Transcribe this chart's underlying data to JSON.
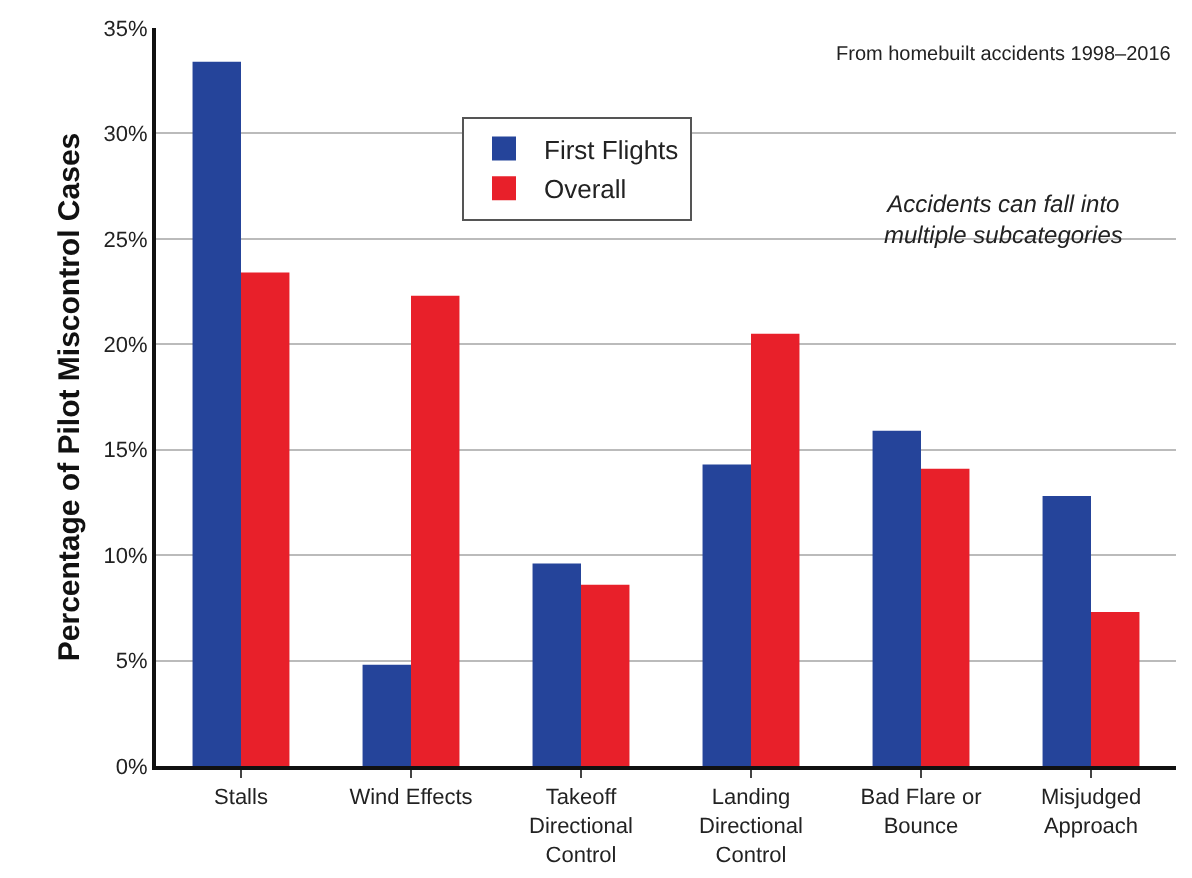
{
  "chart_data": {
    "type": "bar",
    "ylabel": "Percentage of Pilot Miscontrol Cases",
    "categories": [
      "Stalls",
      "Wind Effects",
      "Takeoff\nDirectional\nControl",
      "Landing\nDirectional\nControl",
      "Bad Flare or\nBounce",
      "Misjudged\nApproach"
    ],
    "series": [
      {
        "name": "First Flights",
        "color": "#25449a",
        "values": [
          33.4,
          4.8,
          9.6,
          14.3,
          15.9,
          12.8
        ]
      },
      {
        "name": "Overall",
        "color": "#e8202a",
        "values": [
          23.4,
          22.3,
          8.6,
          20.5,
          14.1,
          7.3
        ]
      }
    ],
    "ylim": [
      0,
      35
    ],
    "yticks": [
      {
        "value": 0,
        "label": "0%"
      },
      {
        "value": 5,
        "label": "5%"
      },
      {
        "value": 10,
        "label": "10%"
      },
      {
        "value": 15,
        "label": "15%"
      },
      {
        "value": 20,
        "label": "20%"
      },
      {
        "value": 25,
        "label": "25%"
      },
      {
        "value": 30,
        "label": "30%"
      },
      {
        "value": 35,
        "label": "35%"
      }
    ],
    "grid": "y",
    "legend": "top",
    "annotations": [
      "From homebuilt accidents 1998–2016",
      "Accidents can fall into\nmultiple subcategories"
    ]
  }
}
